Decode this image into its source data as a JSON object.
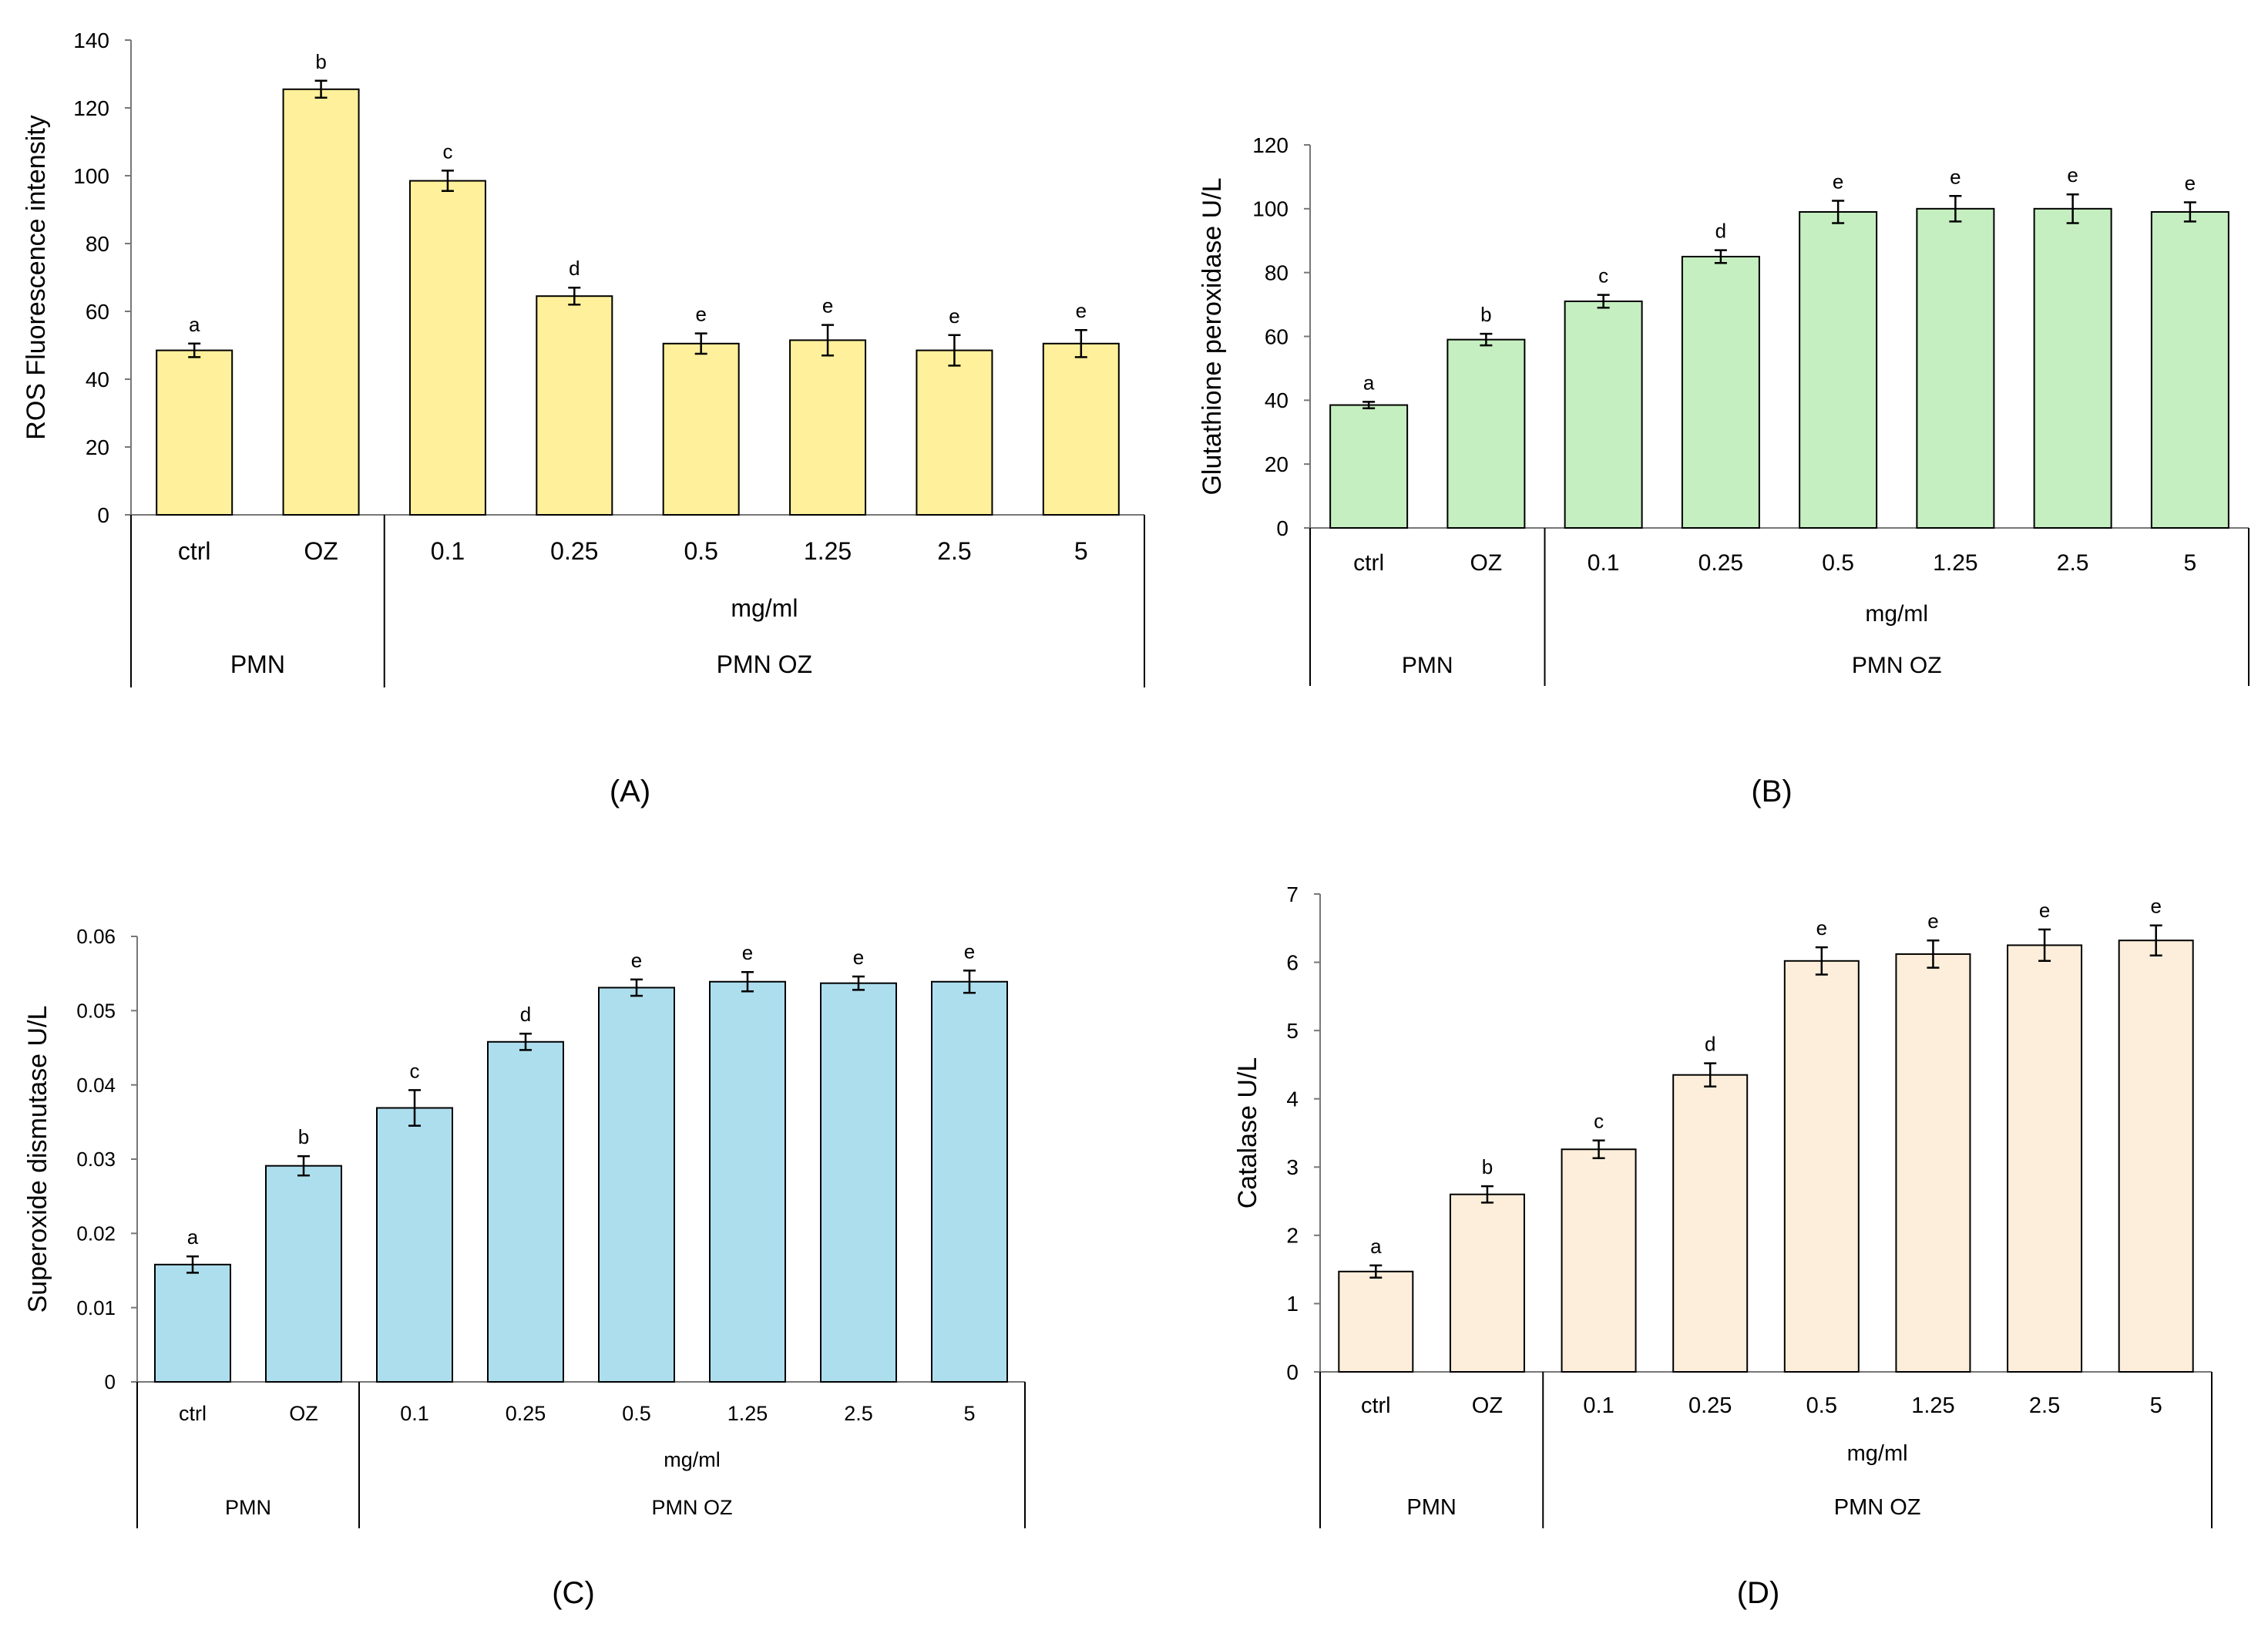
{
  "chart_data": [
    {
      "type": "bar",
      "panel_label": "(A)",
      "ylabel": "ROS Fluorescence intensity",
      "ylim": [
        0,
        140
      ],
      "yticks": [
        0,
        20,
        40,
        60,
        80,
        100,
        120,
        140
      ],
      "ytick_labels": [
        "0",
        "20",
        "40",
        "60",
        "80",
        "100",
        "120",
        "140"
      ],
      "bar_color": "#FFF09B",
      "categories": [
        "ctrl",
        "OZ",
        "0.1",
        "0.25",
        "0.5",
        "1.25",
        "2.5",
        "5"
      ],
      "values": [
        48.5,
        125.5,
        98.5,
        64.5,
        50.5,
        51.5,
        48.5,
        50.5
      ],
      "errors": [
        2,
        2.5,
        3,
        2.5,
        3,
        4.5,
        4.5,
        4
      ],
      "significance": [
        "a",
        "b",
        "c",
        "d",
        "e",
        "e",
        "e",
        "e"
      ],
      "xlabel_sub": "mg/ml",
      "groups": [
        {
          "label": "PMN",
          "count": 2
        },
        {
          "label": "PMN OZ",
          "count": 6
        }
      ]
    },
    {
      "type": "bar",
      "panel_label": "(B)",
      "ylabel": "Glutathione peroxidase U/L",
      "ylim": [
        0,
        120
      ],
      "yticks": [
        0,
        20,
        40,
        60,
        80,
        100,
        120
      ],
      "ytick_labels": [
        "0",
        "20",
        "40",
        "60",
        "80",
        "100",
        "120"
      ],
      "bar_color": "#C5EFC0",
      "categories": [
        "ctrl",
        "OZ",
        "0.1",
        "0.25",
        "0.5",
        "1.25",
        "2.5",
        "5"
      ],
      "values": [
        38.5,
        59,
        71,
        85,
        99,
        100,
        100,
        99
      ],
      "errors": [
        1,
        1.8,
        2,
        2,
        3.5,
        4,
        4.5,
        3
      ],
      "significance": [
        "a",
        "b",
        "c",
        "d",
        "e",
        "e",
        "e",
        "e"
      ],
      "xlabel_sub": "mg/ml",
      "groups": [
        {
          "label": "PMN",
          "count": 2
        },
        {
          "label": "PMN OZ",
          "count": 6
        }
      ]
    },
    {
      "type": "bar",
      "panel_label": "(C)",
      "ylabel": "Superoxide dismutase U/L",
      "ylim": [
        0,
        0.06
      ],
      "yticks": [
        0,
        0.01,
        0.02,
        0.03,
        0.04,
        0.05,
        0.06
      ],
      "ytick_labels": [
        "0",
        "0.01",
        "0.02",
        "0.03",
        "0.04",
        "0.05",
        "0.06"
      ],
      "bar_color": "#ADDEEE",
      "categories": [
        "ctrl",
        "OZ",
        "0.1",
        "0.25",
        "0.5",
        "1.25",
        "2.5",
        "5"
      ],
      "values": [
        0.0158,
        0.0291,
        0.0369,
        0.0458,
        0.0531,
        0.0539,
        0.0537,
        0.0539
      ],
      "errors": [
        0.0011,
        0.0013,
        0.0024,
        0.0011,
        0.0011,
        0.0013,
        0.0009,
        0.0015
      ],
      "significance": [
        "a",
        "b",
        "c",
        "d",
        "e",
        "e",
        "e",
        "e"
      ],
      "xlabel_sub": "mg/ml",
      "groups": [
        {
          "label": "PMN",
          "count": 2
        },
        {
          "label": "PMN OZ",
          "count": 6
        }
      ]
    },
    {
      "type": "bar",
      "panel_label": "(D)",
      "ylabel": "Catalase U/L",
      "ylim": [
        0,
        7
      ],
      "yticks": [
        0,
        1,
        2,
        3,
        4,
        5,
        6,
        7
      ],
      "ytick_labels": [
        "0",
        "1",
        "2",
        "3",
        "4",
        "5",
        "6",
        "7"
      ],
      "bar_color": "#FCEEDA",
      "categories": [
        "ctrl",
        "OZ",
        "0.1",
        "0.25",
        "0.5",
        "1.25",
        "2.5",
        "5"
      ],
      "values": [
        1.47,
        2.6,
        3.26,
        4.35,
        6.02,
        6.12,
        6.25,
        6.32
      ],
      "errors": [
        0.09,
        0.12,
        0.13,
        0.17,
        0.2,
        0.2,
        0.23,
        0.22
      ],
      "significance": [
        "a",
        "b",
        "c",
        "d",
        "e",
        "e",
        "e",
        "e"
      ],
      "xlabel_sub": "mg/ml",
      "groups": [
        {
          "label": "PMN",
          "count": 2
        },
        {
          "label": "PMN OZ",
          "count": 6
        }
      ]
    }
  ]
}
